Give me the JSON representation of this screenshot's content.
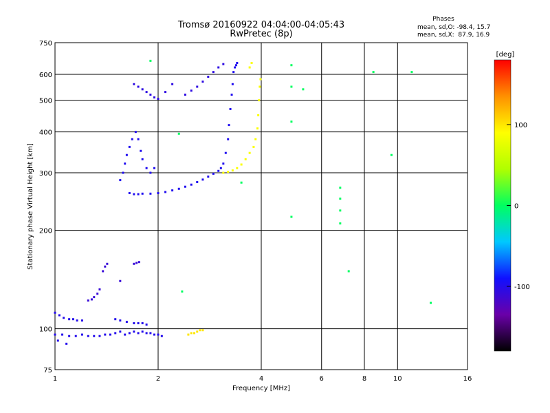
{
  "chart_data": {
    "type": "scatter",
    "title": "Tromsø 20160922 04:04:00-04:05:43",
    "subtitle": "RwPretec (8p)",
    "xlabel": "Frequency [MHz]",
    "ylabel": "Stationary phase Virtual Height [km]",
    "x_scale": "log",
    "y_scale": "log",
    "xlim": [
      1,
      16
    ],
    "ylim": [
      75,
      750
    ],
    "x_ticks": [
      1,
      2,
      4,
      6,
      8,
      10,
      16
    ],
    "y_ticks": [
      75,
      100,
      200,
      300,
      400,
      500,
      600,
      750
    ],
    "stats": {
      "heading": "Phases",
      "line_o": "mean, sd,O: -98.4, 15.7",
      "line_x": "mean, sd,X:  87.9, 16.9"
    },
    "colorbar": {
      "label": "[deg]",
      "range": [
        -180,
        180
      ],
      "ticks": [
        -100,
        0,
        100
      ],
      "colors": [
        "#000000",
        "#6a00a8",
        "#1010ff",
        "#00c8ff",
        "#00ff60",
        "#b0ff00",
        "#ffff00",
        "#ff9000",
        "#ff0000"
      ]
    },
    "series": [
      {
        "name": "lower E trace (blue)",
        "phase": -100,
        "points": [
          [
            1.0,
            96
          ],
          [
            1.05,
            96
          ],
          [
            1.1,
            95
          ],
          [
            1.15,
            95
          ],
          [
            1.2,
            96
          ],
          [
            1.25,
            95
          ],
          [
            1.3,
            95
          ],
          [
            1.35,
            95
          ],
          [
            1.4,
            96
          ],
          [
            1.45,
            96
          ],
          [
            1.5,
            97
          ],
          [
            1.55,
            98
          ],
          [
            1.6,
            96
          ],
          [
            1.65,
            97
          ],
          [
            1.7,
            98
          ],
          [
            1.75,
            97
          ],
          [
            1.8,
            98
          ],
          [
            1.85,
            97
          ],
          [
            1.9,
            97
          ],
          [
            1.95,
            96
          ],
          [
            2.0,
            96
          ],
          [
            2.05,
            95
          ],
          [
            1.02,
            92
          ],
          [
            1.08,
            90
          ]
        ]
      },
      {
        "name": "upper E trace (blue)",
        "phase": -100,
        "points": [
          [
            1.0,
            112
          ],
          [
            1.03,
            110
          ],
          [
            1.06,
            108
          ],
          [
            1.1,
            107
          ],
          [
            1.13,
            107
          ],
          [
            1.16,
            106
          ],
          [
            1.2,
            106
          ],
          [
            1.5,
            107
          ],
          [
            1.55,
            106
          ],
          [
            1.62,
            105
          ],
          [
            1.7,
            104
          ],
          [
            1.75,
            104
          ],
          [
            1.8,
            104
          ],
          [
            1.85,
            103
          ]
        ]
      },
      {
        "name": "E oblique traces",
        "phase": -110,
        "points": [
          [
            1.25,
            122
          ],
          [
            1.28,
            123
          ],
          [
            1.3,
            125
          ],
          [
            1.33,
            128
          ],
          [
            1.35,
            132
          ],
          [
            1.38,
            150
          ],
          [
            1.4,
            155
          ],
          [
            1.42,
            158
          ],
          [
            1.55,
            140
          ],
          [
            1.7,
            158
          ],
          [
            1.73,
            159
          ],
          [
            1.76,
            160
          ]
        ]
      },
      {
        "name": "F trace O (blue-cyan)",
        "phase": -98,
        "points": [
          [
            1.65,
            260
          ],
          [
            1.7,
            258
          ],
          [
            1.75,
            258
          ],
          [
            1.8,
            259
          ],
          [
            1.9,
            259
          ],
          [
            2.0,
            260
          ],
          [
            2.1,
            262
          ],
          [
            2.2,
            265
          ],
          [
            2.3,
            268
          ],
          [
            2.4,
            272
          ],
          [
            2.5,
            276
          ],
          [
            2.6,
            281
          ],
          [
            2.7,
            286
          ],
          [
            2.8,
            292
          ],
          [
            2.9,
            298
          ],
          [
            3.0,
            304
          ],
          [
            3.05,
            310
          ],
          [
            3.1,
            320
          ],
          [
            3.15,
            345
          ],
          [
            3.2,
            380
          ],
          [
            3.22,
            420
          ],
          [
            3.25,
            470
          ],
          [
            3.28,
            520
          ],
          [
            3.3,
            560
          ],
          [
            3.32,
            610
          ],
          [
            3.35,
            630
          ],
          [
            3.38,
            640
          ],
          [
            3.4,
            650
          ],
          [
            1.55,
            285
          ],
          [
            1.58,
            300
          ],
          [
            1.6,
            320
          ],
          [
            1.62,
            340
          ],
          [
            1.65,
            360
          ],
          [
            1.68,
            380
          ],
          [
            1.72,
            400
          ],
          [
            1.75,
            380
          ],
          [
            1.78,
            350
          ],
          [
            1.8,
            330
          ],
          [
            1.85,
            310
          ],
          [
            1.9,
            300
          ],
          [
            1.95,
            310
          ]
        ]
      },
      {
        "name": "F trace X (yellow)",
        "phase": 88,
        "points": [
          [
            3.1,
            300
          ],
          [
            3.2,
            302
          ],
          [
            3.3,
            305
          ],
          [
            3.4,
            310
          ],
          [
            3.5,
            318
          ],
          [
            3.6,
            330
          ],
          [
            3.7,
            345
          ],
          [
            3.8,
            360
          ],
          [
            3.85,
            380
          ],
          [
            3.9,
            410
          ],
          [
            3.92,
            450
          ],
          [
            3.94,
            500
          ],
          [
            3.96,
            550
          ],
          [
            3.98,
            580
          ],
          [
            3.7,
            630
          ],
          [
            3.75,
            650
          ]
        ]
      },
      {
        "name": "spread F top (blue/purple)",
        "phase": -105,
        "points": [
          [
            1.7,
            560
          ],
          [
            1.75,
            550
          ],
          [
            1.8,
            540
          ],
          [
            1.85,
            530
          ],
          [
            1.9,
            520
          ],
          [
            1.95,
            510
          ],
          [
            2.0,
            505
          ],
          [
            2.1,
            530
          ],
          [
            2.2,
            560
          ],
          [
            2.4,
            520
          ],
          [
            2.5,
            535
          ],
          [
            2.6,
            550
          ],
          [
            2.7,
            570
          ],
          [
            2.8,
            590
          ],
          [
            2.9,
            610
          ],
          [
            3.0,
            630
          ],
          [
            3.1,
            645
          ]
        ]
      },
      {
        "name": "scattered points",
        "phase": 0,
        "points": [
          [
            1.9,
            660
          ],
          [
            2.3,
            395
          ],
          [
            3.5,
            280
          ],
          [
            4.9,
            640
          ],
          [
            4.9,
            550
          ],
          [
            4.9,
            430
          ],
          [
            4.9,
            220
          ],
          [
            5.3,
            540
          ],
          [
            6.8,
            270
          ],
          [
            6.8,
            250
          ],
          [
            6.8,
            230
          ],
          [
            6.8,
            210
          ],
          [
            7.2,
            150
          ],
          [
            8.5,
            610
          ],
          [
            9.6,
            340
          ],
          [
            11.0,
            610
          ],
          [
            12.5,
            120
          ],
          [
            2.35,
            130
          ]
        ]
      },
      {
        "name": "E yellow cluster",
        "phase": 100,
        "points": [
          [
            2.45,
            96
          ],
          [
            2.5,
            97
          ],
          [
            2.55,
            97
          ],
          [
            2.6,
            98
          ],
          [
            2.65,
            99
          ],
          [
            2.7,
            99
          ]
        ]
      }
    ]
  }
}
